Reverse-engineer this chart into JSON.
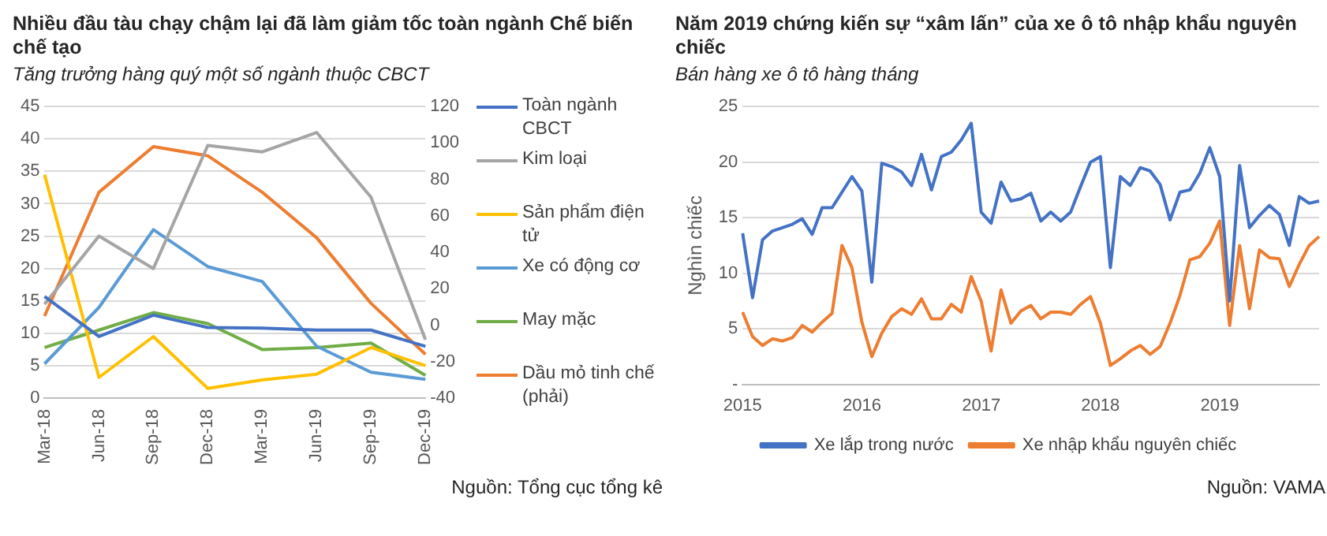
{
  "chart_data": [
    {
      "type": "line",
      "title": "Nhiều đầu tàu chạy chậm lại đã làm giảm tốc toàn ngành Chế biến chế tạo",
      "subtitle": "Tăng trưởng hàng quý một số ngành thuộc CBCT",
      "categories": [
        "Mar-18",
        "Jun-18",
        "Sep-18",
        "Dec-18",
        "Mar-19",
        "Jun-19",
        "Sep-19",
        "Dec-19"
      ],
      "series": [
        {
          "name": "Toàn ngành CBCT",
          "color": "#4472c4",
          "values": [
            15.7,
            9.5,
            12.8,
            10.9,
            10.8,
            10.5,
            10.5,
            8
          ]
        },
        {
          "name": "Kim loại",
          "color": "#a5a5a5",
          "values": [
            14.5,
            25,
            20,
            39,
            38,
            41,
            31,
            9
          ]
        },
        {
          "name": "Sản phẩm điện tử",
          "color": "#ffc000",
          "values": [
            34.5,
            3.2,
            9.5,
            1.5,
            2.8,
            3.7,
            7.8,
            5
          ]
        },
        {
          "name": "Xe có động cơ",
          "color": "#5b9bd5",
          "values": [
            5.3,
            14,
            26,
            20.3,
            18,
            8,
            4,
            2.9
          ]
        },
        {
          "name": "May mặc",
          "color": "#70ad47",
          "values": [
            7.8,
            10.5,
            13.2,
            11.5,
            7.5,
            7.8,
            8.5,
            3.5
          ]
        },
        {
          "name": "Dầu mỏ tinh chế (phải)",
          "color": "#ed7d31",
          "axis": "y2",
          "values": [
            5,
            73,
            98,
            93,
            73,
            48,
            12,
            -16
          ]
        }
      ],
      "ylim": [
        0,
        45
      ],
      "yticks": [
        0,
        5,
        10,
        15,
        20,
        25,
        30,
        35,
        40,
        45
      ],
      "y2lim": [
        -40,
        120
      ],
      "y2ticks": [
        -40,
        -20,
        0,
        20,
        40,
        60,
        80,
        100,
        120
      ],
      "grid": "y",
      "legend": "right",
      "marker": "none",
      "line_style": "solid",
      "annotations": [
        "Nguồn: Tổng cục tổng kê"
      ]
    },
    {
      "type": "line",
      "title": "Năm 2019 chứng kiến sự “xâm lấn” của xe ô tô nhập khẩu nguyên chiếc",
      "subtitle": "Bán hàng xe ô tô hàng tháng",
      "ylabel": "Nghìn chiếc",
      "categories": [
        "2015",
        null,
        null,
        null,
        null,
        null,
        null,
        null,
        null,
        null,
        null,
        null,
        "2016",
        null,
        null,
        null,
        null,
        null,
        null,
        null,
        null,
        null,
        null,
        null,
        "2017",
        null,
        null,
        null,
        null,
        null,
        null,
        null,
        null,
        null,
        null,
        null,
        "2018",
        null,
        null,
        null,
        null,
        null,
        null,
        null,
        null,
        null,
        null,
        null,
        "2019",
        null,
        null,
        null,
        null,
        null,
        null,
        null,
        null,
        null,
        null
      ],
      "series": [
        {
          "name": "Xe lắp trong nước",
          "color": "#4472c4",
          "values": [
            13.6,
            7.8,
            13,
            13.8,
            14.1,
            14.4,
            14.9,
            13.5,
            15.9,
            15.9,
            17.3,
            18.7,
            17.4,
            9.2,
            19.9,
            19.6,
            19.1,
            17.9,
            20.7,
            17.5,
            20.5,
            20.9,
            22,
            23.5,
            15.5,
            14.5,
            18.2,
            16.5,
            16.7,
            17.2,
            14.7,
            15.5,
            14.7,
            15.5,
            17.8,
            20,
            20.5,
            10.5,
            18.7,
            17.9,
            19.5,
            19.2,
            18,
            14.8,
            17.3,
            17.5,
            19,
            21.3,
            18.7,
            7.5,
            19.7,
            14.1,
            15.2,
            16.1,
            15.3,
            12.5,
            16.9,
            16.3,
            16.5
          ]
        },
        {
          "name": "Xe nhập khẩu nguyên chiếc",
          "color": "#ed7d31",
          "values": [
            6.5,
            4.3,
            3.5,
            4.1,
            3.9,
            4.2,
            5.3,
            4.7,
            5.6,
            6.4,
            12.5,
            10.5,
            5.6,
            2.5,
            4.6,
            6.1,
            6.8,
            6.3,
            7.7,
            5.9,
            5.9,
            7.2,
            6.5,
            9.7,
            7.5,
            3,
            8.5,
            5.5,
            6.6,
            7.1,
            5.9,
            6.5,
            6.5,
            6.3,
            7.2,
            7.9,
            5.5,
            1.7,
            2.3,
            3,
            3.5,
            2.7,
            3.4,
            5.5,
            8,
            11.2,
            11.5,
            12.7,
            14.7,
            5.3,
            12.5,
            6.8,
            12.1,
            11.4,
            11.3,
            8.8,
            10.8,
            12.5,
            13.3
          ]
        }
      ],
      "ylim": [
        0,
        25
      ],
      "yticks": [
        {
          "value": 0,
          "label": "-"
        },
        5,
        10,
        15,
        20,
        25
      ],
      "grid": "y",
      "legend": "bottom",
      "marker": "none",
      "line_style": "solid",
      "annotations": [
        "Nguồn: VAMA"
      ]
    }
  ]
}
